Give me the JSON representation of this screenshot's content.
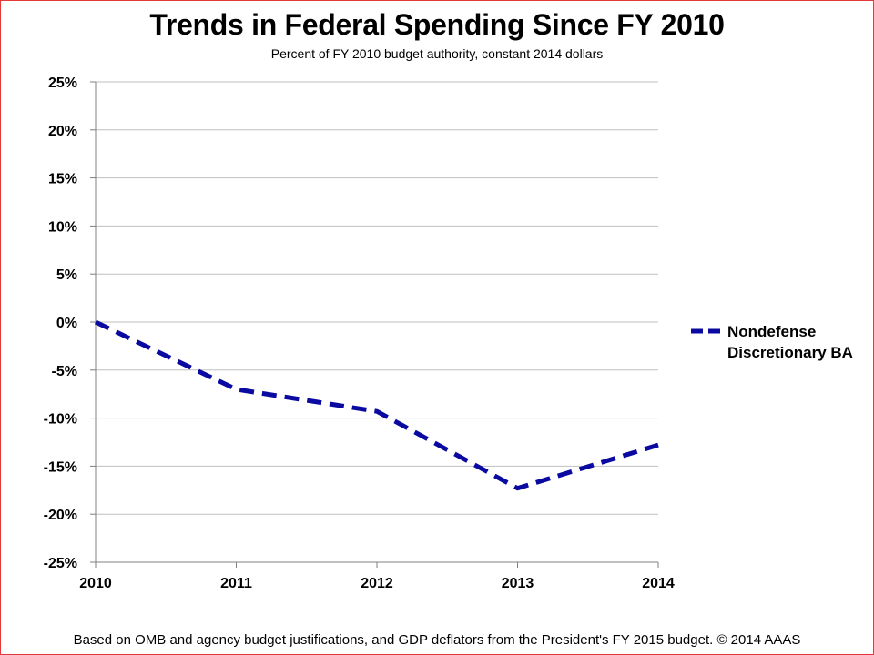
{
  "title": "Trends in Federal Spending Since FY 2010",
  "subtitle": "Percent of FY 2010 budget authority, constant 2014 dollars",
  "footer": "Based on OMB and agency budget justifications, and GDP deflators from the President's FY 2015 budget. © 2014 AAAS",
  "colors": {
    "series": "#0a0aa0",
    "grid": "#bfbfbf",
    "border": "#e2393b"
  },
  "chart_data": {
    "type": "line",
    "x": [
      2010,
      2011,
      2012,
      2013,
      2014
    ],
    "series": [
      {
        "name": "Nondefense Discretionary BA",
        "legend_lines": [
          "Nondefense",
          "Discretionary BA"
        ],
        "values": [
          0,
          -7,
          -9.3,
          -17.3,
          -12.8
        ],
        "line_style": "dashed"
      }
    ],
    "xlabel": "",
    "ylabel": "",
    "ylim": [
      -25,
      25
    ],
    "y_ticks": [
      25,
      20,
      15,
      10,
      5,
      0,
      -5,
      -10,
      -15,
      -20,
      -25
    ],
    "y_tick_labels": [
      "25%",
      "20%",
      "15%",
      "10%",
      "5%",
      "0%",
      "-5%",
      "-10%",
      "-15%",
      "-20%",
      "-25%"
    ],
    "x_tick_labels": [
      "2010",
      "2011",
      "2012",
      "2013",
      "2014"
    ],
    "grid": true,
    "legend_position": "right"
  }
}
